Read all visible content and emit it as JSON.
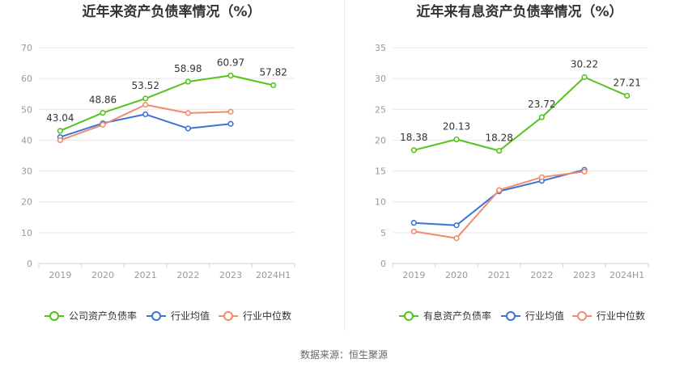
{
  "colors": {
    "company": "#52c41a",
    "industry_avg": "#3b73d6",
    "industry_median": "#f08c6c",
    "grid": "#e8e8e8",
    "axis": "#d0d0d0"
  },
  "source_text": "数据来源：恒生聚源",
  "chart_data": [
    {
      "type": "line",
      "title": "近年来资产负债率情况（%）",
      "categories": [
        "2019",
        "2020",
        "2021",
        "2022",
        "2023",
        "2024H1"
      ],
      "ylim": [
        0,
        70
      ],
      "yticks": [
        0,
        10,
        20,
        30,
        40,
        50,
        60,
        70
      ],
      "grid": true,
      "legend_position": "bottom",
      "series": [
        {
          "name": "公司资产负债率",
          "color_key": "company",
          "values": [
            43.04,
            48.86,
            53.52,
            58.98,
            60.97,
            57.82
          ],
          "labels": [
            "43.04",
            "48.86",
            "53.52",
            "58.98",
            "60.97",
            "57.82"
          ]
        },
        {
          "name": "行业均值",
          "color_key": "industry_avg",
          "values": [
            41.0,
            45.5,
            48.4,
            43.8,
            45.3,
            null
          ]
        },
        {
          "name": "行业中位数",
          "color_key": "industry_median",
          "values": [
            40.0,
            45.0,
            51.5,
            48.8,
            49.2,
            null
          ]
        }
      ]
    },
    {
      "type": "line",
      "title": "近年来有息资产负债率情况（%）",
      "categories": [
        "2019",
        "2020",
        "2021",
        "2022",
        "2023",
        "2024H1"
      ],
      "ylim": [
        0,
        35
      ],
      "yticks": [
        0,
        5,
        10,
        15,
        20,
        25,
        30,
        35
      ],
      "grid": true,
      "legend_position": "bottom",
      "series": [
        {
          "name": "有息资产负债率",
          "color_key": "company",
          "values": [
            18.38,
            20.13,
            18.28,
            23.72,
            30.22,
            27.21
          ],
          "labels": [
            "18.38",
            "20.13",
            "18.28",
            "23.72",
            "30.22",
            "27.21"
          ]
        },
        {
          "name": "行业均值",
          "color_key": "industry_avg",
          "values": [
            6.6,
            6.2,
            11.7,
            13.4,
            15.2,
            null
          ]
        },
        {
          "name": "行业中位数",
          "color_key": "industry_median",
          "values": [
            5.2,
            4.1,
            11.9,
            14.0,
            14.9,
            null
          ]
        }
      ]
    }
  ]
}
